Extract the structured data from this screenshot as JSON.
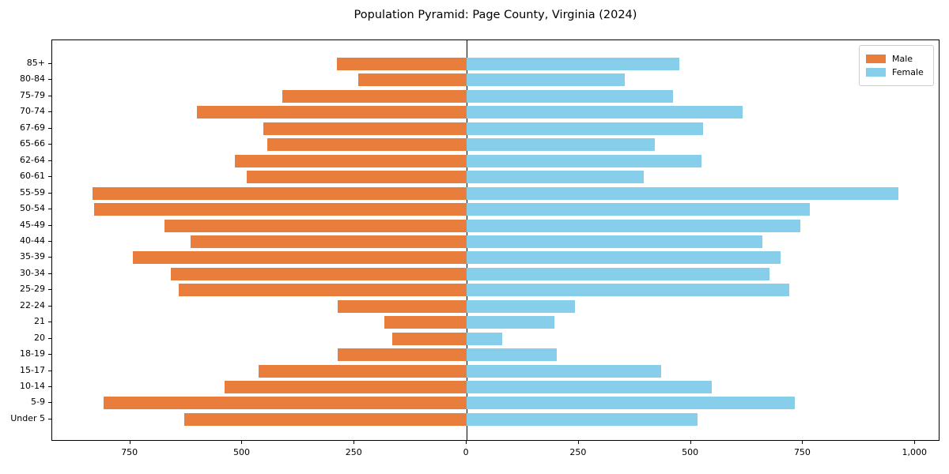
{
  "title": "Population Pyramid: Page County, Virginia (2024)",
  "legend": {
    "male_label": "Male",
    "female_label": "Female"
  },
  "colors": {
    "male": "#E87D3C",
    "female": "#87CEEB",
    "axis": "#000000"
  },
  "chart_data": {
    "type": "bar",
    "orientation": "horizontal-pyramid",
    "title": "Population Pyramid: Page County, Virginia (2024)",
    "xlabel": "",
    "ylabel": "",
    "grid": false,
    "zero_line": true,
    "legend_position": "upper right",
    "xlim": [
      -924,
      1056
    ],
    "x_ticks": [
      -750,
      -500,
      -250,
      0,
      250,
      500,
      750,
      1000
    ],
    "x_tick_labels": [
      "750",
      "500",
      "250",
      "0",
      "250",
      "500",
      "750",
      "1,000"
    ],
    "categories": [
      "85+",
      "80-84",
      "75-79",
      "70-74",
      "67-69",
      "65-66",
      "62-64",
      "60-61",
      "55-59",
      "50-54",
      "45-49",
      "40-44",
      "35-39",
      "30-34",
      "25-29",
      "22-24",
      "21",
      "20",
      "18-19",
      "15-17",
      "10-14",
      "5-9",
      "Under 5"
    ],
    "series": [
      {
        "name": "Male",
        "side": "left",
        "values": [
          290,
          241,
          411,
          601,
          453,
          445,
          516,
          491,
          834,
          830,
          674,
          615,
          744,
          660,
          642,
          288,
          183,
          166,
          287,
          464,
          540,
          809,
          629
        ]
      },
      {
        "name": "Female",
        "side": "right",
        "values": [
          474,
          352,
          460,
          616,
          527,
          419,
          524,
          395,
          962,
          765,
          744,
          660,
          700,
          675,
          719,
          241,
          195,
          79,
          201,
          434,
          546,
          732,
          514
        ]
      }
    ]
  }
}
